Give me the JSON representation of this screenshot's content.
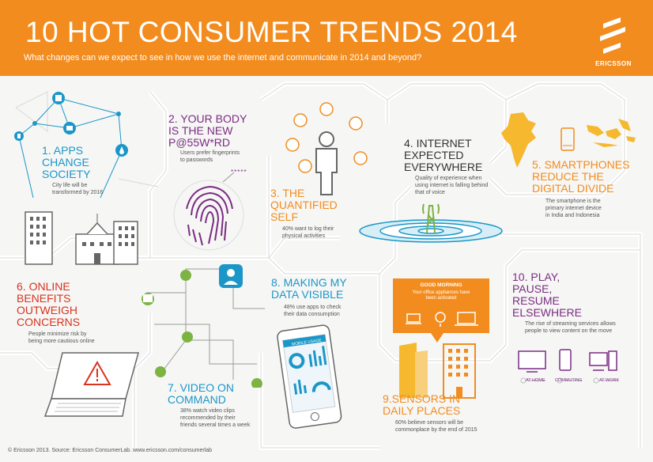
{
  "header": {
    "title": "10 HOT CONSUMER TRENDS 2014",
    "subtitle": "What changes can we expect to see in how we use the internet and communicate in 2014 and beyond?",
    "brand": "ERICSSON"
  },
  "colors": {
    "orange": "#f28c1e",
    "blue": "#1a97c8",
    "purple": "#7b2c83",
    "red": "#d9331f",
    "green": "#7cb342"
  },
  "trends": {
    "t1": {
      "title_lines": [
        "1. APPS",
        "CHANGE",
        "SOCIETY"
      ],
      "desc_lines": [
        "City life will be",
        "transformed by 2016"
      ]
    },
    "t2": {
      "title_lines": [
        "2. YOUR BODY",
        "IS THE NEW",
        "P@55W*RD"
      ],
      "desc_lines": [
        "Users prefer fingerprints",
        "to passwords"
      ],
      "password_mask": "*****"
    },
    "t3": {
      "title_lines": [
        "3. THE",
        "QUANTIFIED",
        "SELF"
      ],
      "desc_lines": [
        "40% want to log their",
        "physical activities"
      ]
    },
    "t4": {
      "title_lines": [
        "4. INTERNET",
        "EXPECTED",
        "EVERYWHERE"
      ],
      "desc_lines": [
        "Quality of experience when",
        "using internet is falling behind",
        "that of voice"
      ]
    },
    "t5": {
      "title_lines": [
        "5. SMARTPHONES",
        "REDUCE THE",
        "DIGITAL DIVIDE"
      ],
      "desc_lines": [
        "The smartphone is the",
        "primary internet device",
        "in India and Indonesia"
      ]
    },
    "t6": {
      "title_lines": [
        "6. ONLINE",
        "BENEFITS",
        "OUTWEIGH",
        "CONCERNS"
      ],
      "desc_lines": [
        "People minimize risk by",
        "being more cautious online"
      ]
    },
    "t7": {
      "title_lines": [
        "7. VIDEO ON",
        "COMMAND"
      ],
      "desc_lines": [
        "38% watch video clips",
        "recommended by their",
        "friends several times a week"
      ]
    },
    "t8": {
      "title_lines": [
        "8. MAKING MY",
        "DATA VISIBLE"
      ],
      "desc_lines": [
        "48% use apps to check",
        "their data consumption"
      ],
      "phone_label": "MOBILE USAGE"
    },
    "t9": {
      "title_lines": [
        "9.SENSORS IN",
        "DAILY PLACES"
      ],
      "desc_lines": [
        "60% believe sensors will be",
        "commonplace by the end of 2015"
      ],
      "bubble_title": "GOOD MORNING",
      "bubble_lines": [
        "Your office appliances have",
        "been activated"
      ]
    },
    "t10": {
      "title_lines": [
        "10. PLAY,",
        "PAUSE,",
        "RESUME",
        "ELSEWHERE"
      ],
      "desc_lines": [
        "The rise of streaming services allows",
        "people to view content on the move"
      ],
      "locations": [
        "AT HOME",
        "COMMUTING",
        "AT WORK"
      ]
    }
  },
  "footer": {
    "text": "© Ericsson 2013. Source: Ericsson ConsumerLab. www.ericsson.com/consumerlab"
  }
}
